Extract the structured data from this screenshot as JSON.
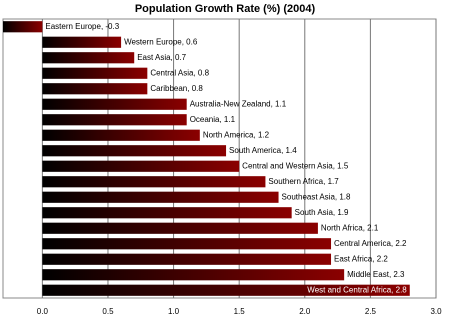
{
  "chart_data": {
    "type": "hbar",
    "title": "Population Growth Rate (%) (2004)",
    "values": [
      -0.3,
      0.6,
      0.7,
      0.8,
      0.8,
      1.1,
      1.1,
      1.2,
      1.4,
      1.5,
      1.7,
      1.8,
      1.9,
      2.1,
      2.2,
      2.2,
      2.3,
      2.8
    ],
    "value_labels": [
      "Eastern Europe, -0.3",
      "Western Europe, 0.6",
      "East Asia, 0.7",
      "Central Asia, 0.8",
      "Caribbean, 0.8",
      "Australia-New Zealand, 1.1",
      "Oceania, 1.1",
      "North America, 1.2",
      "South America, 1.4",
      "Central and Western Asia, 1.5",
      "Southern Africa, 1.7",
      "Southeast Asia, 1.8",
      "South Asia, 1.9",
      "North Africa, 2.1",
      "Central America, 2.2",
      "East Africa, 2.2",
      "Middle East, 2.3",
      "West and Central Africa, 2.8"
    ],
    "color": "#8b0000",
    "xlim": [
      -0.3,
      3.0
    ],
    "xticks": [
      {
        "value": 0,
        "label": "0.0"
      },
      {
        "value": 0.5,
        "label": "0.5"
      },
      {
        "value": 1,
        "label": "1.0"
      },
      {
        "value": 1.5,
        "label": "1.5"
      },
      {
        "value": 2,
        "label": "2.0"
      },
      {
        "value": 2.5,
        "label": "2.5"
      },
      {
        "value": 3,
        "label": "3.0"
      }
    ],
    "grid": true
  }
}
